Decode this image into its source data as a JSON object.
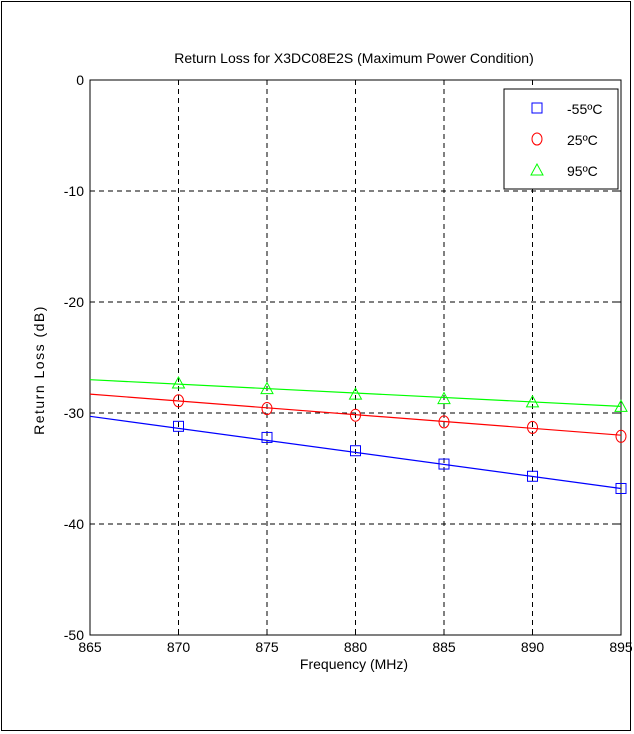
{
  "chart_data": {
    "type": "line",
    "title": "Return Loss for X3DC08E2S (Maximum Power Condition)",
    "xlabel": "Frequency (MHz)",
    "ylabel": "Return Loss (dB)",
    "xlim": [
      865,
      895
    ],
    "ylim": [
      -50,
      0
    ],
    "xticks": [
      865,
      870,
      875,
      880,
      885,
      890,
      895
    ],
    "yticks": [
      0,
      -10,
      -20,
      -30,
      -40,
      -50
    ],
    "grid": true,
    "grid_style": "dashed",
    "legend_position": "top-right",
    "series": [
      {
        "name": "-55ºC",
        "color": "#0000ff",
        "marker": "square",
        "line_x": [
          865,
          895
        ],
        "line_y": [
          -30.3,
          -36.8
        ],
        "x": [
          870,
          875,
          880,
          885,
          890,
          895
        ],
        "y": [
          -31.2,
          -32.2,
          -33.4,
          -34.6,
          -35.7,
          -36.8
        ]
      },
      {
        "name": "25ºC",
        "color": "#ff0000",
        "marker": "circle",
        "line_x": [
          865,
          895
        ],
        "line_y": [
          -28.3,
          -32.0
        ],
        "x": [
          870,
          875,
          880,
          885,
          890,
          895
        ],
        "y": [
          -28.9,
          -29.6,
          -30.2,
          -30.8,
          -31.3,
          -32.1
        ]
      },
      {
        "name": "95ºC",
        "color": "#00ff00",
        "marker": "triangle",
        "line_x": [
          865,
          895
        ],
        "line_y": [
          -27.0,
          -29.4
        ],
        "x": [
          870,
          875,
          880,
          885,
          890,
          895
        ],
        "y": [
          -27.3,
          -27.8,
          -28.3,
          -28.7,
          -29.0,
          -29.4
        ]
      }
    ]
  }
}
